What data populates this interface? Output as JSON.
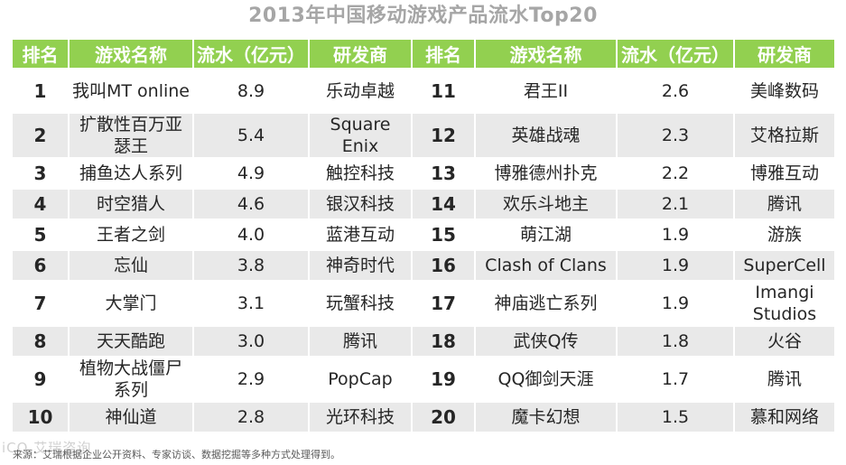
{
  "chart_data": {
    "type": "table",
    "title": "2013年中国移动游戏产品流水Top20",
    "headers": [
      "排名",
      "游戏名称",
      "流水（亿元）",
      "研发商",
      "排名",
      "游戏名称",
      "流水（亿元）",
      "研发商"
    ],
    "rows": [
      {
        "l": {
          "rank": "1",
          "name": "我叫MT online",
          "revenue": "8.9",
          "dev": "乐动卓越"
        },
        "r": {
          "rank": "11",
          "name": "君王II",
          "revenue": "2.6",
          "dev": "美峰数码"
        }
      },
      {
        "l": {
          "rank": "2",
          "name": "扩散性百万亚瑟王",
          "revenue": "5.4",
          "dev": "Square Enix"
        },
        "r": {
          "rank": "12",
          "name": "英雄战魂",
          "revenue": "2.3",
          "dev": "艾格拉斯"
        }
      },
      {
        "l": {
          "rank": "3",
          "name": "捕鱼达人系列",
          "revenue": "4.9",
          "dev": "触控科技"
        },
        "r": {
          "rank": "13",
          "name": "博雅德州扑克",
          "revenue": "2.2",
          "dev": "博雅互动"
        }
      },
      {
        "l": {
          "rank": "4",
          "name": "时空猎人",
          "revenue": "4.6",
          "dev": "银汉科技"
        },
        "r": {
          "rank": "14",
          "name": "欢乐斗地主",
          "revenue": "2.1",
          "dev": "腾讯"
        }
      },
      {
        "l": {
          "rank": "5",
          "name": "王者之剑",
          "revenue": "4.0",
          "dev": "蓝港互动"
        },
        "r": {
          "rank": "15",
          "name": "萌江湖",
          "revenue": "1.9",
          "dev": "游族"
        }
      },
      {
        "l": {
          "rank": "6",
          "name": "忘仙",
          "revenue": "3.8",
          "dev": "神奇时代"
        },
        "r": {
          "rank": "16",
          "name": "Clash of Clans",
          "revenue": "1.9",
          "dev": "SuperCell"
        }
      },
      {
        "l": {
          "rank": "7",
          "name": "大掌门",
          "revenue": "3.1",
          "dev": "玩蟹科技"
        },
        "r": {
          "rank": "17",
          "name": "神庙逃亡系列",
          "revenue": "1.9",
          "dev": "Imangi Studios"
        }
      },
      {
        "l": {
          "rank": "8",
          "name": "天天酷跑",
          "revenue": "3.0",
          "dev": "腾讯"
        },
        "r": {
          "rank": "18",
          "name": "武侠Q传",
          "revenue": "1.8",
          "dev": "火谷"
        }
      },
      {
        "l": {
          "rank": "9",
          "name": "植物大战僵尸系列",
          "revenue": "2.9",
          "dev": "PopCap"
        },
        "r": {
          "rank": "19",
          "name": "QQ御剑天涯",
          "revenue": "1.7",
          "dev": "腾讯"
        }
      },
      {
        "l": {
          "rank": "10",
          "name": "神仙道",
          "revenue": "2.8",
          "dev": "光环科技"
        },
        "r": {
          "rank": "20",
          "name": "魔卡幻想",
          "revenue": "1.5",
          "dev": "慕和网络"
        }
      }
    ],
    "header_color": "#92d050",
    "stripe_color": "#e9e9e9"
  },
  "footer": {
    "source": "来源：艾瑞根据企业公开资料、专家访谈、数据挖掘等多种方式处理得到。",
    "watermark": "iCO 艾瑞咨询"
  }
}
